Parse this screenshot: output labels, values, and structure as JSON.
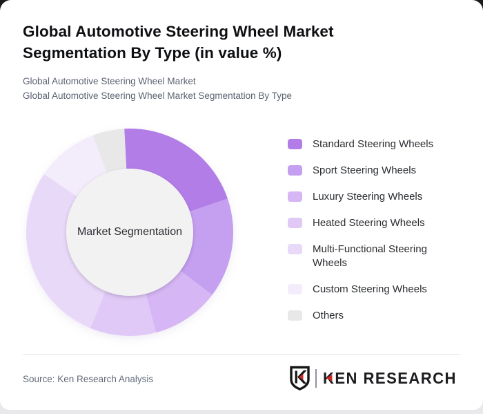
{
  "page": {
    "title": "Global Automotive Steering Wheel Market Segmentation By Type (in value %)",
    "subtitle_line1": "Global Automotive Steering Wheel Market",
    "subtitle_line2": "Global Automotive Steering Wheel Market Segmentation By Type"
  },
  "chart_data": {
    "type": "pie",
    "variant": "donut",
    "title": "Global Automotive Steering Wheel Market Segmentation By Type (in value %)",
    "center_label": "Market Segmentation",
    "start_angle_deg": -3,
    "legend_position": "right",
    "values_are_estimated_percent": true,
    "segments": [
      {
        "label": "Standard Steering Wheels",
        "value": 20.6,
        "color": "#b37de8"
      },
      {
        "label": "Sport Steering Wheels",
        "value": 15.6,
        "color": "#c59ff0"
      },
      {
        "label": "Luxury Steering Wheels",
        "value": 10.6,
        "color": "#d6b6f4"
      },
      {
        "label": "Heated Steering Wheels",
        "value": 10.3,
        "color": "#e0c9f7"
      },
      {
        "label": "Multi-Functional Steering Wheels",
        "value": 28.3,
        "color": "#e9d9f9"
      },
      {
        "label": "Custom Steering Wheels",
        "value": 9.7,
        "color": "#f3edfb"
      },
      {
        "label": "Others",
        "value": 5.0,
        "color": "#e8e8e9"
      }
    ]
  },
  "footer": {
    "source": "Source: Ken Research Analysis",
    "logo_text": "KEN RESEARCH"
  },
  "colors": {
    "accent_red": "#cb2a28",
    "center_circle": "#f2f2f3",
    "card_bg": "#ffffff",
    "divider": "#e3e4e6",
    "logo_ink": "#1c1c1f"
  }
}
